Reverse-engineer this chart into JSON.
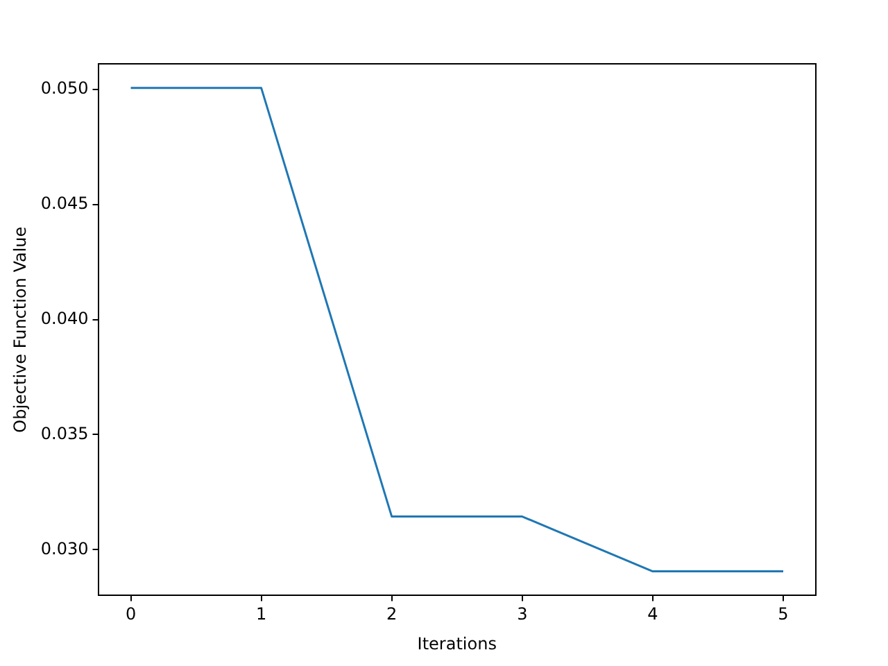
{
  "chart_data": {
    "type": "line",
    "xlabel": "Iterations",
    "ylabel": "Objective Function Value",
    "x": [
      0,
      1,
      2,
      3,
      4,
      5
    ],
    "series": [
      {
        "color": "#1f77b4",
        "values": [
          0.05006,
          0.05006,
          0.03144,
          0.03144,
          0.02906,
          0.02906
        ]
      }
    ],
    "xlim": [
      -0.25,
      5.25
    ],
    "xticks": [
      0,
      1,
      2,
      3,
      4,
      5
    ],
    "ylim": [
      0.02801,
      0.05111
    ],
    "yticks": [
      {
        "value": 0.03,
        "label": "0.030"
      },
      {
        "value": 0.035,
        "label": "0.035"
      },
      {
        "value": 0.04,
        "label": "0.040"
      },
      {
        "value": 0.045,
        "label": "0.045"
      },
      {
        "value": 0.05,
        "label": "0.050"
      }
    ],
    "grid": false,
    "legend": false,
    "marker": "none",
    "line_style": "solid"
  }
}
